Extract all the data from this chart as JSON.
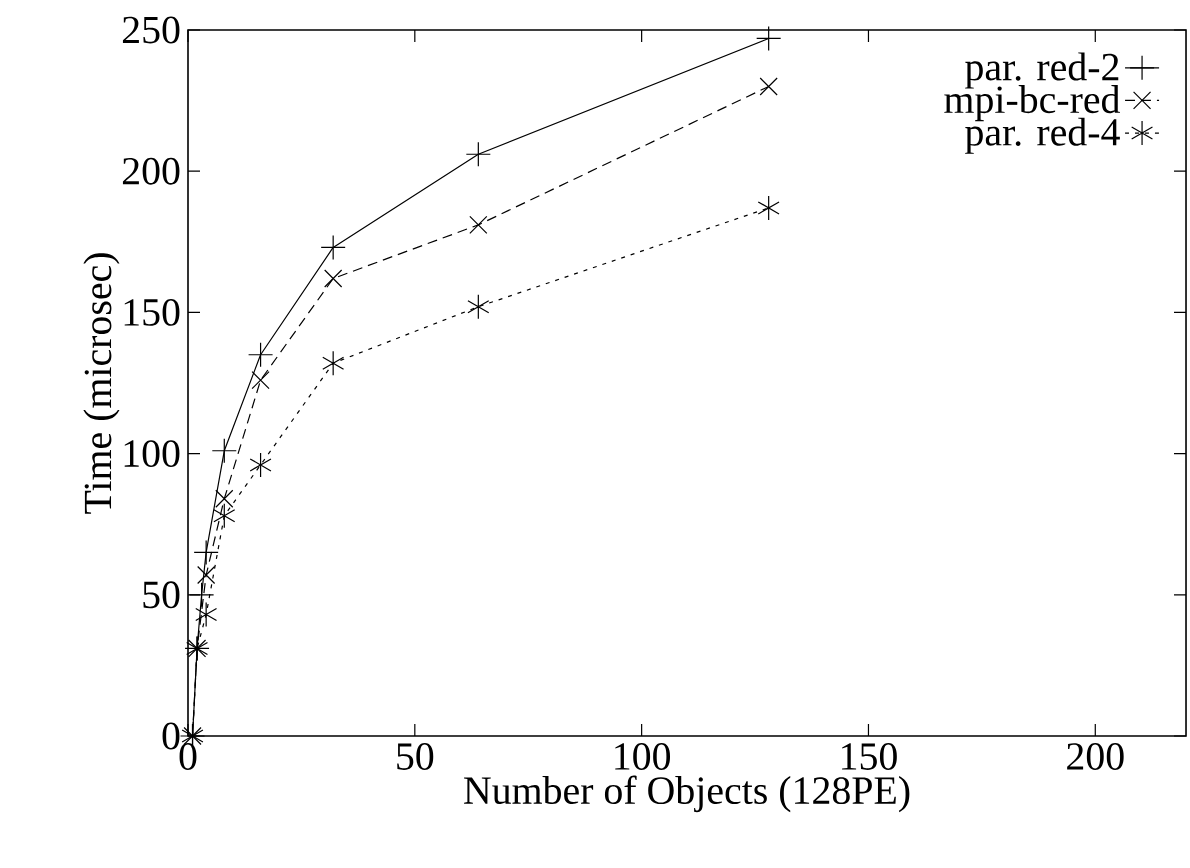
{
  "chart_data": {
    "type": "line",
    "xlabel": "Number of Objects (128PE)",
    "ylabel": "Time (microsec)",
    "xlim": [
      0,
      220
    ],
    "ylim": [
      0,
      250
    ],
    "xticks": [
      0,
      50,
      100,
      150,
      200
    ],
    "yticks": [
      0,
      50,
      100,
      150,
      200,
      250
    ],
    "legend": "top right",
    "series": [
      {
        "name": "par. red-2",
        "color": "#000000",
        "marker": "cross",
        "line_style": "solid",
        "x": [
          1,
          2,
          3,
          4,
          8,
          16,
          32,
          64,
          128
        ],
        "values": [
          0,
          31,
          50,
          65,
          101,
          135,
          173,
          206,
          247
        ]
      },
      {
        "name": "mpi-bc-red",
        "color": "#000000",
        "marker": "cross",
        "line_style": "dashed",
        "x": [
          1,
          2,
          4,
          8,
          16,
          32,
          64,
          128
        ],
        "values": [
          0,
          31,
          57,
          84,
          126,
          162,
          181,
          230
        ]
      },
      {
        "name": "par. red-4",
        "color": "#000000",
        "marker": "cross",
        "line_style": "dotted",
        "x": [
          1,
          2,
          4,
          8,
          16,
          32,
          64,
          128
        ],
        "values": [
          0,
          31,
          43,
          78,
          96,
          132,
          152,
          187
        ]
      }
    ]
  }
}
